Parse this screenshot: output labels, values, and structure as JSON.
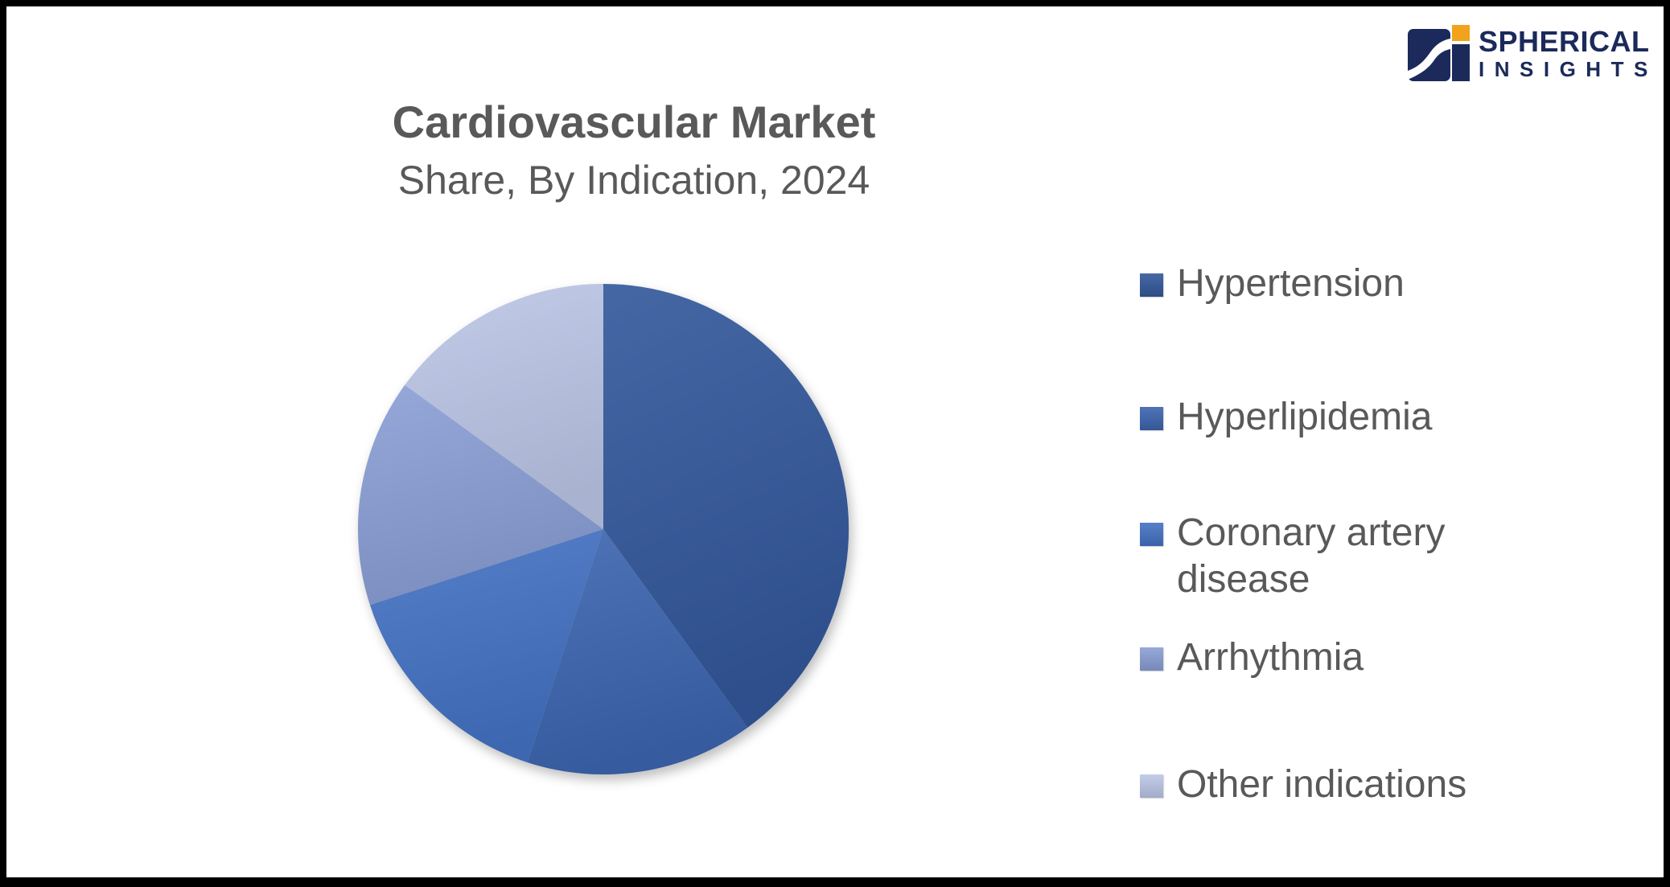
{
  "page": {
    "background_color": "#ffffff",
    "frame_color": "#000000"
  },
  "header": {
    "title": "Cardiovascular Market",
    "subtitle": "Share, By Indication, 2024",
    "text_color": "#595959"
  },
  "logo": {
    "brand_line1": "SPHERICAL",
    "brand_line2": "INSIGHTS",
    "navy": "#1b2a5a",
    "orange": "#f2a31b"
  },
  "chart_data": {
    "type": "pie",
    "title": "Cardiovascular Market Share, By Indication, 2024",
    "categories": [
      "Hypertension",
      "Hyperlipidemia",
      "Coronary artery disease",
      "Arrhythmia",
      "Other indications"
    ],
    "values": [
      40,
      15,
      15,
      15,
      15
    ],
    "value_unit": "% share (estimated from slice angles; no data labels shown)",
    "colors": [
      "#33589B",
      "#3C65B0",
      "#4472C4",
      "#8A9FD5",
      "#BCC7E7"
    ],
    "start_angle_deg": 0,
    "direction": "clockwise",
    "data_labels": false,
    "legend_position": "right",
    "legend_text_color": "#595959"
  }
}
